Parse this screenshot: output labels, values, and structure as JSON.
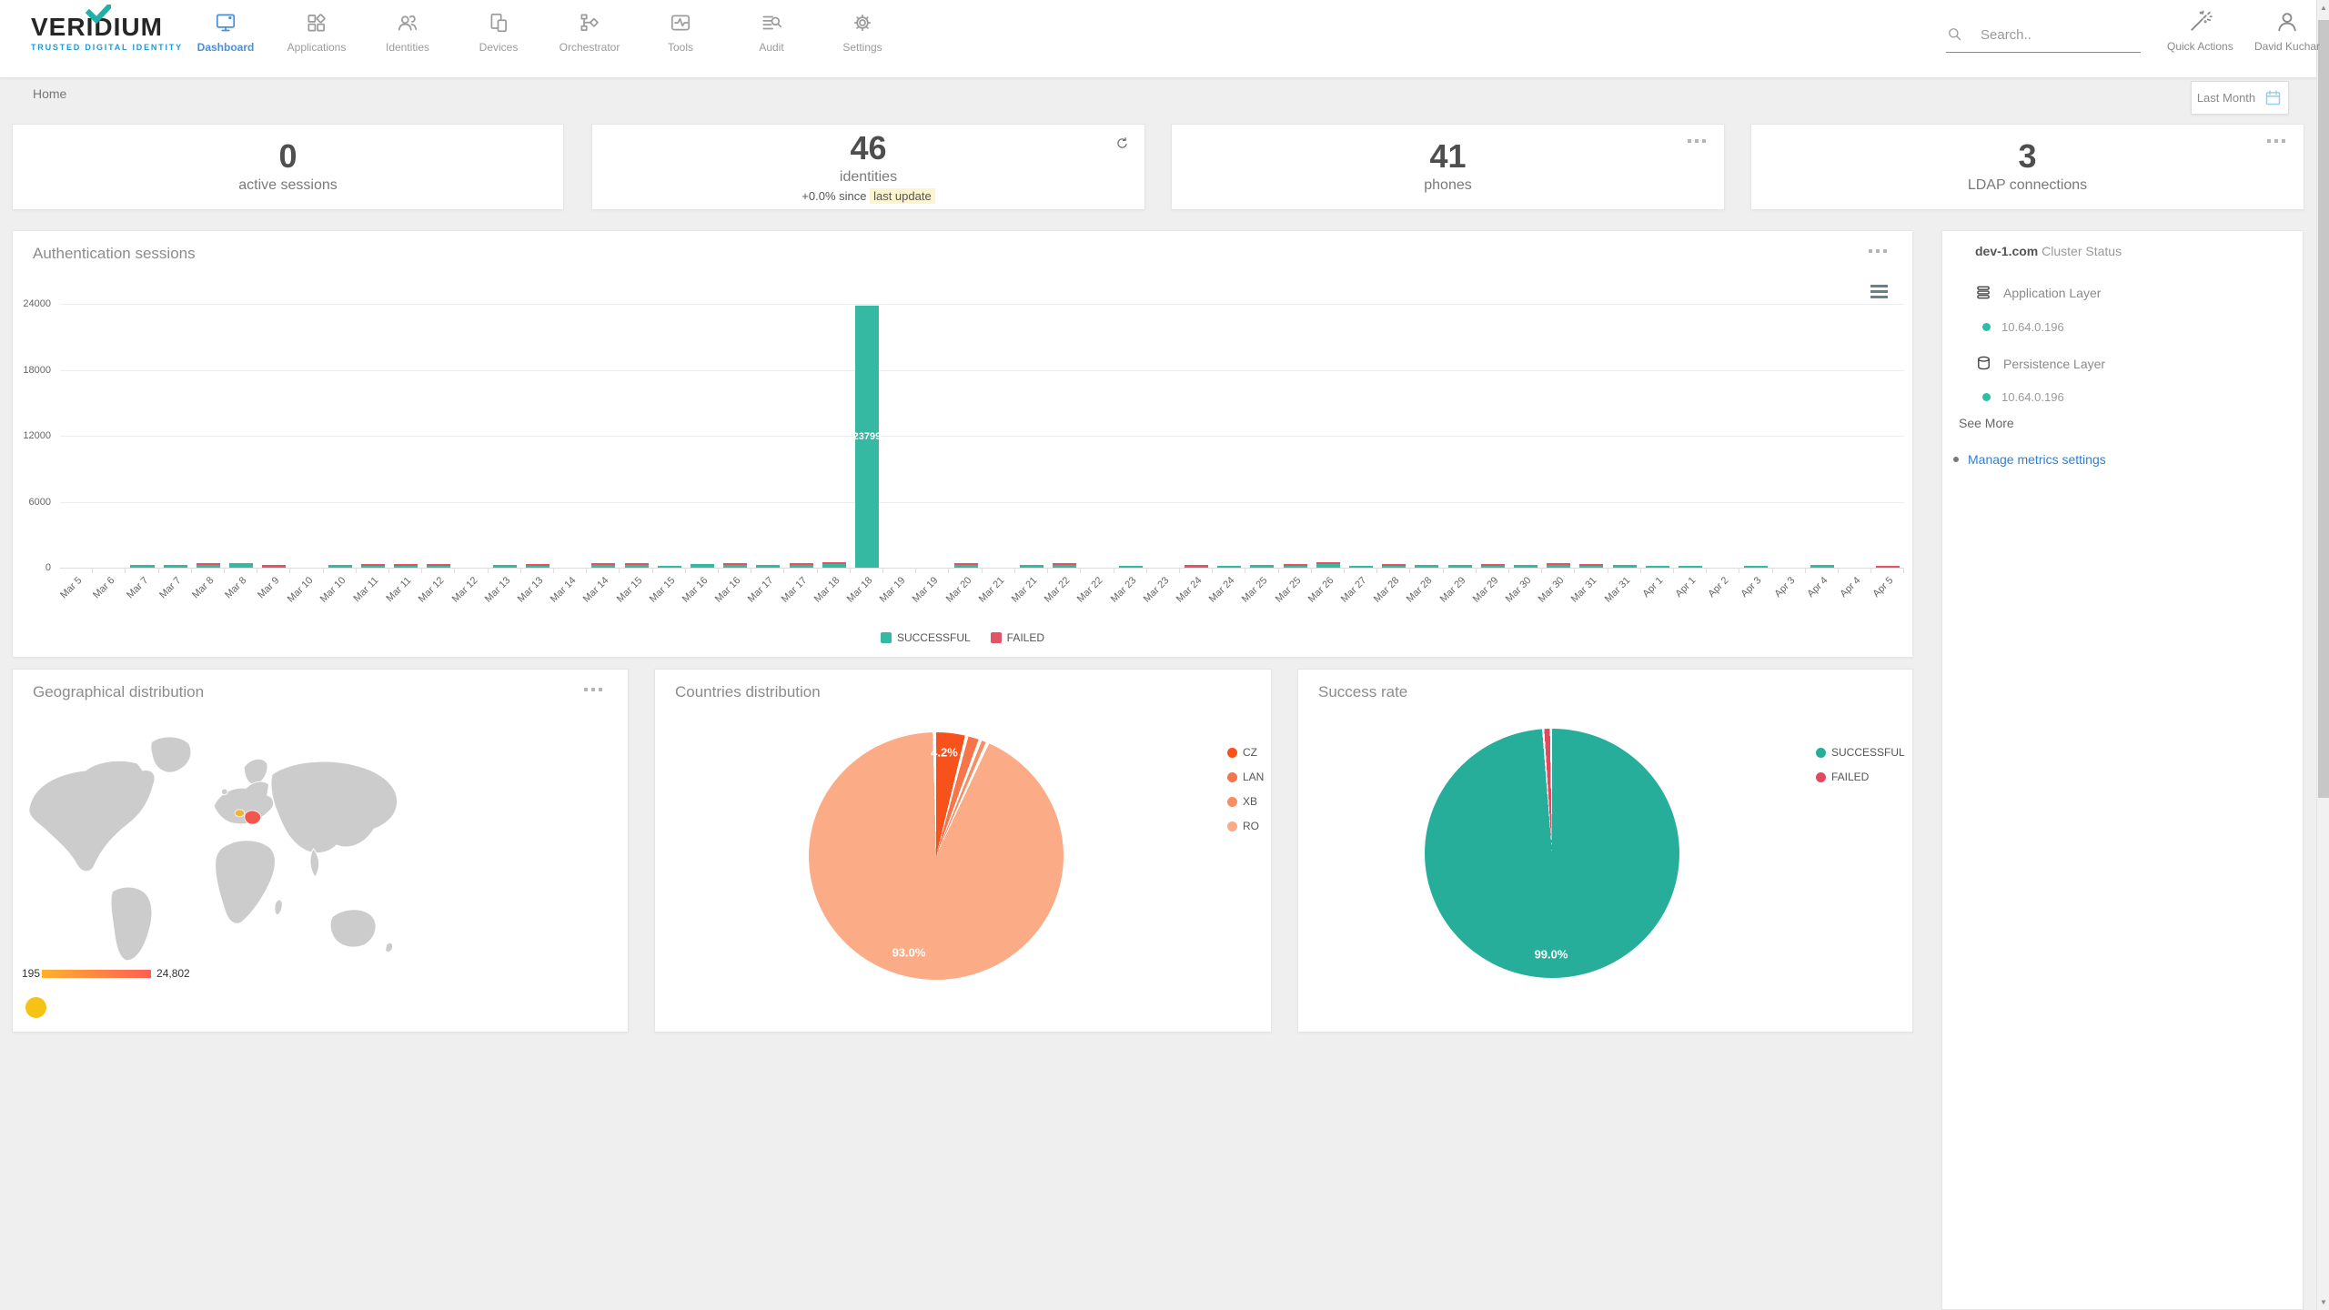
{
  "brand": {
    "name": "VERIDIUM",
    "tagline": "TRUSTED DIGITAL IDENTITY"
  },
  "nav": {
    "items": [
      {
        "label": "Dashboard",
        "active": true
      },
      {
        "label": "Applications",
        "active": false
      },
      {
        "label": "Identities",
        "active": false
      },
      {
        "label": "Devices",
        "active": false
      },
      {
        "label": "Orchestrator",
        "active": false
      },
      {
        "label": "Tools",
        "active": false
      },
      {
        "label": "Audit",
        "active": false
      },
      {
        "label": "Settings",
        "active": false
      }
    ]
  },
  "topbar": {
    "search_placeholder": "Search..",
    "quick_actions": "Quick Actions",
    "user": "David Kuchar"
  },
  "breadcrumb": "Home",
  "date_filter": "Last Month",
  "stats": [
    {
      "value": "0",
      "label": "active sessions"
    },
    {
      "value": "46",
      "label": "identities",
      "delta_prefix": "+0.0% since",
      "delta_highlight": "last update"
    },
    {
      "value": "41",
      "label": "phones"
    },
    {
      "value": "3",
      "label": "LDAP connections"
    }
  ],
  "cluster": {
    "host": "dev-1.com",
    "subtitle": "Cluster Status",
    "sections": [
      {
        "label": "Application Layer",
        "node": "10.64.0.196",
        "status_color": "#2bbfa4"
      },
      {
        "label": "Persistence Layer",
        "node": "10.64.0.196",
        "status_color": "#2bbfa4"
      }
    ],
    "see_more": "See More",
    "manage_link": "Manage metrics settings"
  },
  "geo": {
    "title": "Geographical distribution",
    "scale_min": "195",
    "scale_max": "24,802"
  },
  "chart_data": [
    {
      "type": "bar",
      "title": "Authentication sessions",
      "ylim": [
        0,
        24000
      ],
      "yticks": [
        "24000",
        "18000",
        "12000",
        "6000",
        "0"
      ],
      "grid": true,
      "legend_position": "bottom",
      "categories": [
        "Mar 5",
        "Mar 6",
        "Mar 7",
        "Mar 7",
        "Mar 8",
        "Mar 8",
        "Mar 9",
        "Mar 10",
        "Mar 10",
        "Mar 11",
        "Mar 11",
        "Mar 12",
        "Mar 12",
        "Mar 13",
        "Mar 13",
        "Mar 14",
        "Mar 14",
        "Mar 15",
        "Mar 15",
        "Mar 16",
        "Mar 16",
        "Mar 17",
        "Mar 17",
        "Mar 18",
        "Mar 18",
        "Mar 19",
        "Mar 19",
        "Mar 20",
        "Mar 21",
        "Mar 21",
        "Mar 22",
        "Mar 22",
        "Mar 23",
        "Mar 23",
        "Mar 24",
        "Mar 24",
        "Mar 25",
        "Mar 25",
        "Mar 26",
        "Mar 27",
        "Mar 28",
        "Mar 28",
        "Mar 29",
        "Mar 29",
        "Mar 30",
        "Mar 30",
        "Mar 31",
        "Mar 31",
        "Apr 1",
        "Apr 1",
        "Apr 2",
        "Apr 3",
        "Apr 3",
        "Apr 4",
        "Apr 4",
        "Apr 5"
      ],
      "series": [
        {
          "name": "SUCCESSFUL",
          "color": "#35b9a3",
          "values": [
            0,
            0,
            250,
            280,
            260,
            430,
            0,
            0,
            230,
            110,
            190,
            130,
            0,
            210,
            90,
            0,
            210,
            260,
            190,
            310,
            260,
            210,
            230,
            330,
            23799,
            0,
            0,
            210,
            0,
            260,
            210,
            0,
            190,
            0,
            0,
            160,
            210,
            130,
            310,
            190,
            110,
            260,
            210,
            90,
            230,
            290,
            160,
            210,
            190,
            160,
            0,
            130,
            0,
            210,
            0,
            0
          ]
        },
        {
          "name": "FAILED",
          "color": "#e05565",
          "values": [
            0,
            0,
            0,
            0,
            70,
            0,
            290,
            0,
            0,
            130,
            90,
            70,
            0,
            0,
            130,
            0,
            70,
            90,
            0,
            0,
            70,
            0,
            50,
            90,
            0,
            0,
            0,
            110,
            0,
            0,
            130,
            0,
            0,
            0,
            210,
            0,
            0,
            90,
            70,
            0,
            160,
            0,
            0,
            150,
            0,
            80,
            110,
            0,
            0,
            0,
            0,
            0,
            0,
            0,
            0,
            110
          ]
        }
      ],
      "peak_label": "23799"
    },
    {
      "type": "pie",
      "title": "Countries distribution",
      "legend_position": "right",
      "slices": [
        {
          "label": "CZ",
          "value": 4.2,
          "pct_label": "4.2%",
          "color": "#f7521c"
        },
        {
          "label": "LAN",
          "value": 1.8,
          "pct_label": "",
          "color": "#f8744a"
        },
        {
          "label": "XB",
          "value": 1.0,
          "pct_label": "",
          "color": "#f98e63"
        },
        {
          "label": "RO",
          "value": 93.0,
          "pct_label": "93.0%",
          "color": "#fbab85"
        }
      ]
    },
    {
      "type": "pie",
      "title": "Success rate",
      "legend_position": "right",
      "slices": [
        {
          "label": "SUCCESSFUL",
          "value": 99.0,
          "pct_label": "99.0%",
          "color": "#27ae9b"
        },
        {
          "label": "FAILED",
          "value": 1.0,
          "pct_label": "",
          "color": "#e04a5f"
        }
      ]
    }
  ]
}
